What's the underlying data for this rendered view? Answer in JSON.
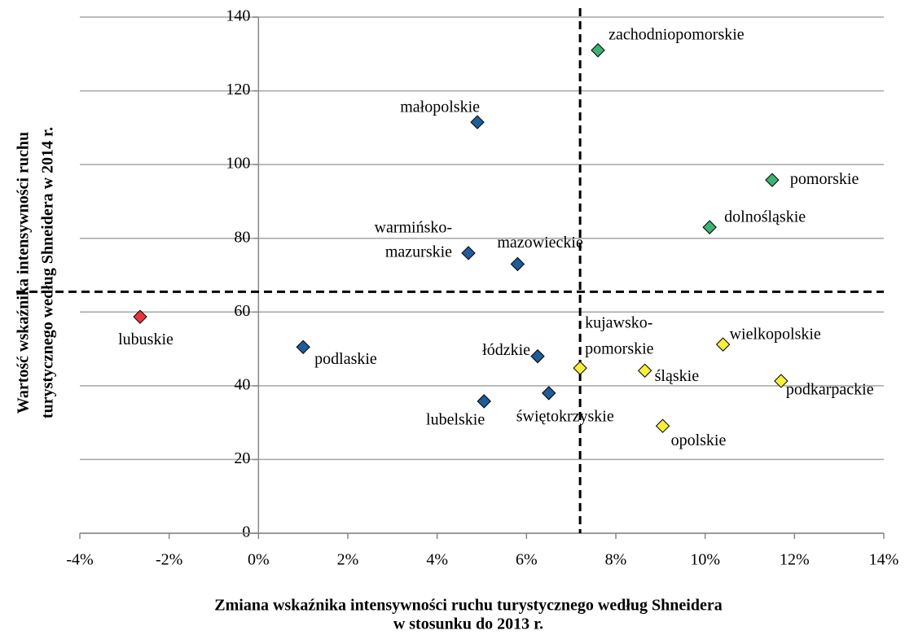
{
  "chart_data": {
    "type": "scatter",
    "xlabel": [
      "Zmiana wskaźnika intensywności ruchu turystycznego według Shneidera",
      "w stosunku do  2013 r."
    ],
    "ylabel": [
      "Wartość  wskaźnika intensywności ruchu",
      "turystycznego według Shneidera w 2014 r."
    ],
    "xlim": [
      -4,
      14
    ],
    "ylim": [
      0,
      140
    ],
    "xticks": [
      {
        "value": -4,
        "label": "-4%"
      },
      {
        "value": -2,
        "label": "-2%"
      },
      {
        "value": 0,
        "label": "0%"
      },
      {
        "value": 2,
        "label": "2%"
      },
      {
        "value": 4,
        "label": "4%"
      },
      {
        "value": 6,
        "label": "6%"
      },
      {
        "value": 8,
        "label": "8%"
      },
      {
        "value": 10,
        "label": "10%"
      },
      {
        "value": 12,
        "label": "12%"
      },
      {
        "value": 14,
        "label": "14%"
      }
    ],
    "yticks": [
      0,
      20,
      40,
      60,
      80,
      100,
      120,
      140
    ],
    "grid": true,
    "reference_lines": {
      "x": 7.2,
      "y": 65.5
    },
    "points": [
      {
        "label": [
          "zachodniopomorskie"
        ],
        "x": 7.6,
        "y": 131,
        "color": "#3cb371"
      },
      {
        "label": [
          "małopolskie"
        ],
        "x": 4.9,
        "y": 111.5,
        "color": "#1f5c99"
      },
      {
        "label": [
          "pomorskie"
        ],
        "x": 11.5,
        "y": 95.8,
        "color": "#3cb371"
      },
      {
        "label": [
          "dolnośląskie"
        ],
        "x": 10.1,
        "y": 83,
        "color": "#3cb371"
      },
      {
        "label": [
          "warmińsko-",
          "mazurskie"
        ],
        "x": 4.7,
        "y": 76,
        "color": "#1f5c99"
      },
      {
        "label": [
          "mazowieckie"
        ],
        "x": 5.8,
        "y": 73,
        "color": "#1f5c99"
      },
      {
        "label": [
          "lubuskie"
        ],
        "x": -2.65,
        "y": 58.7,
        "color": "#e8343a"
      },
      {
        "label": [
          "podlaskie"
        ],
        "x": 1.0,
        "y": 50.5,
        "color": "#1f5c99"
      },
      {
        "label": [
          "łódzkie"
        ],
        "x": 6.25,
        "y": 48,
        "color": "#1f5c99"
      },
      {
        "label": [
          "kujawsko-",
          "pomorskie"
        ],
        "x": 7.2,
        "y": 44.8,
        "color": "#f5ef3c"
      },
      {
        "label": [
          "wielkopolskie"
        ],
        "x": 10.4,
        "y": 51.2,
        "color": "#f5ef3c"
      },
      {
        "label": [
          "śląskie"
        ],
        "x": 8.65,
        "y": 44.1,
        "color": "#f5ef3c"
      },
      {
        "label": [
          "podkarpackie"
        ],
        "x": 11.7,
        "y": 41.3,
        "color": "#f5ef3c"
      },
      {
        "label": [
          "świętokrzyskie"
        ],
        "x": 6.5,
        "y": 38,
        "color": "#1f5c99"
      },
      {
        "label": [
          "lubelskie"
        ],
        "x": 5.05,
        "y": 35.8,
        "color": "#1f5c99"
      },
      {
        "label": [
          "opolskie"
        ],
        "x": 9.05,
        "y": 29.1,
        "color": "#f5ef3c"
      }
    ]
  }
}
